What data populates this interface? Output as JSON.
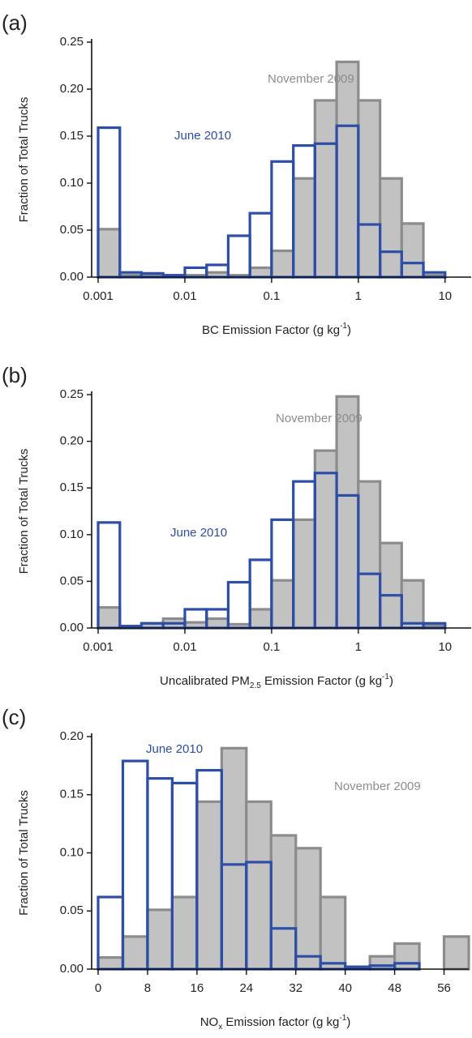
{
  "chart_data": [
    {
      "type": "histogram",
      "panel_label": "(a)",
      "ylabel": "Fraction of Total Trucks",
      "xlabel": [
        {
          "text": "BC Emission Factor (g kg"
        },
        {
          "text": "-1",
          "shift": "sup"
        },
        {
          "text": ")"
        }
      ],
      "log_x": true,
      "xlim": [
        0.001,
        20
      ],
      "xticks": [
        0.001,
        0.01,
        0.1,
        1,
        10
      ],
      "ylim": [
        0,
        0.25
      ],
      "yticks": [
        {
          "value": 0,
          "label": "0.00"
        },
        0.05,
        {
          "value": 0.1,
          "label": "0.10"
        },
        0.15,
        {
          "value": 0.2,
          "label": "0.20"
        },
        0.25
      ],
      "bins": [
        0.001,
        0.00178,
        0.00316,
        0.00562,
        0.01,
        0.0178,
        0.0316,
        0.0562,
        0.1,
        0.178,
        0.316,
        0.562,
        1,
        1.78,
        3.16,
        5.62,
        10
      ],
      "series": [
        {
          "name": "November 2009",
          "color": "#8c8c8c",
          "fill": "#c2c2c2",
          "values": [
            0.051,
            0.002,
            0.002,
            0.001,
            0.002,
            0.005,
            0.002,
            0.01,
            0.028,
            0.105,
            0.188,
            0.229,
            0.188,
            0.105,
            0.057,
            0.002
          ]
        },
        {
          "name": "June 2010",
          "color": "#2d4ea6",
          "fill": "none",
          "values": [
            0.159,
            0.005,
            0.004,
            0.002,
            0.01,
            0.013,
            0.044,
            0.068,
            0.123,
            0.14,
            0.142,
            0.161,
            0.056,
            0.027,
            0.015,
            0.005
          ]
        }
      ]
    },
    {
      "type": "histogram",
      "panel_label": "(b)",
      "ylabel": "Fraction of Total Trucks",
      "xlabel": [
        {
          "text": "Uncalibrated PM"
        },
        {
          "text": "2.5",
          "shift": "sub"
        },
        {
          "text": " Emission Factor (g kg"
        },
        {
          "text": "-1",
          "shift": "sup"
        },
        {
          "text": ")"
        }
      ],
      "log_x": true,
      "xlim": [
        0.001,
        20
      ],
      "xticks": [
        0.001,
        0.01,
        0.1,
        1,
        10
      ],
      "ylim": [
        0,
        0.25
      ],
      "yticks": [
        {
          "value": 0,
          "label": "0.00"
        },
        0.05,
        {
          "value": 0.1,
          "label": "0.10"
        },
        0.15,
        {
          "value": 0.2,
          "label": "0.20"
        },
        0.25
      ],
      "bins": [
        0.001,
        0.00178,
        0.00316,
        0.00562,
        0.01,
        0.0178,
        0.0316,
        0.0562,
        0.1,
        0.178,
        0.316,
        0.562,
        1,
        1.78,
        3.16,
        5.62,
        10
      ],
      "series": [
        {
          "name": "November 2009",
          "color": "#8c8c8c",
          "fill": "#c2c2c2",
          "values": [
            0.022,
            0.002,
            0.005,
            0.01,
            0.006,
            0.01,
            0.004,
            0.02,
            0.051,
            0.116,
            0.19,
            0.248,
            0.157,
            0.091,
            0.051,
            0.003
          ]
        },
        {
          "name": "June 2010",
          "color": "#2d4ea6",
          "fill": "none",
          "values": [
            0.113,
            0.002,
            0.005,
            0.005,
            0.02,
            0.02,
            0.049,
            0.073,
            0.116,
            0.157,
            0.166,
            0.142,
            0.058,
            0.035,
            0.005,
            0.005
          ]
        }
      ]
    },
    {
      "type": "histogram",
      "panel_label": "(c)",
      "ylabel": "Fraction of Total Trucks",
      "xlabel": [
        {
          "text": "NO"
        },
        {
          "text": "x",
          "shift": "sub"
        },
        {
          "text": " Emission factor (g kg"
        },
        {
          "text": "-1",
          "shift": "sup"
        },
        {
          "text": ")"
        }
      ],
      "log_x": false,
      "xlim": [
        0,
        60
      ],
      "xticks": [
        0,
        8,
        16,
        24,
        32,
        40,
        48,
        56
      ],
      "ylim": [
        0,
        0.2
      ],
      "yticks": [
        {
          "value": 0,
          "label": "0.00"
        },
        0.05,
        {
          "value": 0.1,
          "label": "0.10"
        },
        0.15,
        {
          "value": 0.2,
          "label": "0.20"
        }
      ],
      "bins": [
        0,
        4,
        8,
        12,
        16,
        20,
        24,
        28,
        32,
        36,
        40,
        44,
        48,
        52,
        56,
        60
      ],
      "series": [
        {
          "name": "November 2009",
          "color": "#8c8c8c",
          "fill": "#c2c2c2",
          "values": [
            0.01,
            0.028,
            0.051,
            0.062,
            0.144,
            0.19,
            0.144,
            0.115,
            0.104,
            0.062,
            0.002,
            0.011,
            0.022,
            0,
            0.028
          ]
        },
        {
          "name": "June 2010",
          "color": "#2d4ea6",
          "fill": "none",
          "values": [
            0.062,
            0.179,
            0.164,
            0.16,
            0.171,
            0.09,
            0.092,
            0.035,
            0.011,
            0.005,
            0.002,
            0.003,
            0.005,
            0,
            0
          ]
        }
      ]
    }
  ]
}
